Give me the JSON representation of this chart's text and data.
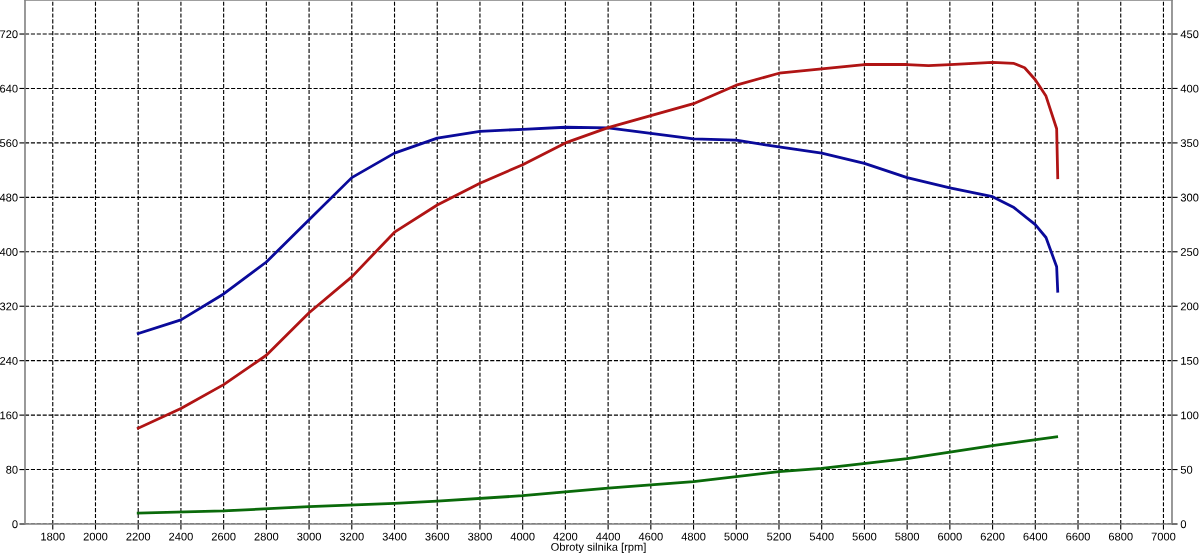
{
  "chart_data": {
    "type": "line",
    "xlabel": "Obroty silnika [rpm]",
    "xlim": [
      1670,
      7040
    ],
    "xticks": [
      1800,
      2000,
      2200,
      2400,
      2600,
      2800,
      3000,
      3200,
      3400,
      3600,
      3800,
      4000,
      4200,
      4400,
      4600,
      4800,
      5000,
      5200,
      5400,
      5600,
      5800,
      6000,
      6200,
      6400,
      6600,
      6800,
      7000
    ],
    "ylim": [
      0,
      770
    ],
    "yticks": [
      0,
      80,
      160,
      240,
      320,
      400,
      480,
      560,
      640,
      720
    ],
    "y2lim": [
      0,
      481.25
    ],
    "y2ticks": [
      0,
      50,
      100,
      150,
      200,
      250,
      300,
      350,
      400,
      450
    ],
    "grid": true,
    "legend": false,
    "marker": "none",
    "series": [
      {
        "color": "#0a0a9a",
        "x": [
          2200,
          2400,
          2600,
          2800,
          3000,
          3200,
          3400,
          3600,
          3800,
          4000,
          4200,
          4400,
          4600,
          4800,
          5000,
          5200,
          5400,
          5600,
          5800,
          6000,
          6200,
          6300,
          6400,
          6450,
          6500,
          6505
        ],
        "values": [
          280,
          300,
          338,
          385,
          447,
          509,
          545,
          567,
          577,
          580,
          583,
          582,
          574,
          566,
          564,
          554,
          545,
          530,
          509,
          494,
          481,
          465,
          440,
          421,
          378,
          342
        ]
      },
      {
        "color": "#b01414",
        "axis": "y2",
        "x": [
          2200,
          2400,
          2600,
          2800,
          3000,
          3200,
          3400,
          3600,
          3800,
          4000,
          4200,
          4400,
          4600,
          4800,
          5000,
          5200,
          5400,
          5600,
          5800,
          5900,
          6000,
          6200,
          6300,
          6350,
          6400,
          6450,
          6500,
          6505
        ],
        "values": [
          88,
          106,
          128,
          155,
          194,
          227,
          268,
          293,
          313,
          330,
          350,
          364,
          375,
          386,
          403,
          414,
          418,
          422,
          422,
          421,
          422,
          424,
          423,
          419,
          408,
          393,
          363,
          318
        ]
      },
      {
        "color": "#0a6a0a",
        "axis": "y2",
        "x": [
          2200,
          2600,
          3000,
          3400,
          3600,
          4000,
          4400,
          4800,
          5200,
          5400,
          5800,
          6200,
          6500
        ],
        "values": [
          10,
          12,
          16,
          19,
          21,
          26,
          33,
          39,
          48,
          51,
          60,
          72,
          80
        ]
      }
    ]
  }
}
